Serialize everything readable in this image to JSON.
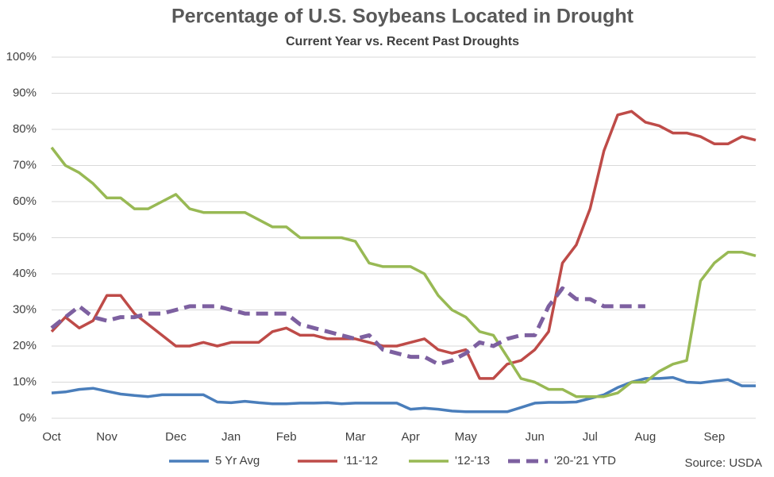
{
  "chart_data": {
    "type": "line",
    "title": "Percentage of U.S. Soybeans Located in Drought",
    "subtitle": "Current Year vs. Recent Past Droughts",
    "source": "Source: USDA",
    "categories": [
      "Oct",
      null,
      null,
      null,
      "Nov",
      null,
      null,
      null,
      null,
      "Dec",
      null,
      null,
      null,
      "Jan",
      null,
      null,
      null,
      "Feb",
      null,
      null,
      null,
      null,
      "Mar",
      null,
      null,
      null,
      "Apr",
      null,
      null,
      null,
      "May",
      null,
      null,
      null,
      null,
      "Jun",
      null,
      null,
      null,
      "Jul",
      null,
      null,
      null,
      "Aug",
      null,
      null,
      null,
      null,
      "Sep",
      null,
      null,
      null
    ],
    "series": [
      {
        "name": "5 Yr Avg",
        "color": "#4a7ebb",
        "dashed": false,
        "values": [
          7,
          7.3,
          8,
          8.3,
          7.5,
          6.7,
          6.3,
          6,
          6.5,
          6.5,
          6.5,
          6.5,
          4.5,
          4.3,
          4.7,
          4.3,
          4,
          4,
          4.2,
          4.2,
          4.3,
          4,
          4.2,
          4.2,
          4.2,
          4.2,
          2.5,
          2.8,
          2.5,
          2,
          1.8,
          1.8,
          1.8,
          1.8,
          3,
          4.2,
          4.4,
          4.4,
          4.5,
          5.5,
          6.5,
          8.5,
          10,
          11,
          11,
          11.3,
          10,
          9.8,
          10.3,
          10.7,
          9,
          9
        ]
      },
      {
        "name": "'11-'12",
        "color": "#be4b48",
        "dashed": false,
        "values": [
          24,
          28,
          25,
          27,
          34,
          34,
          29,
          26,
          23,
          20,
          20,
          21,
          20,
          21,
          21,
          21,
          24,
          25,
          23,
          23,
          22,
          22,
          22,
          21,
          20,
          20,
          21,
          22,
          19,
          18,
          19,
          11,
          11,
          15,
          16,
          19,
          24,
          43,
          48,
          58,
          74,
          84,
          85,
          82,
          81,
          79,
          79,
          78,
          76,
          76,
          78,
          77
        ]
      },
      {
        "name": "'12-'13",
        "color": "#98b954",
        "dashed": false,
        "values": [
          75,
          70,
          68,
          65,
          61,
          61,
          58,
          58,
          60,
          62,
          58,
          57,
          57,
          57,
          57,
          55,
          53,
          53,
          50,
          50,
          50,
          50,
          49,
          43,
          42,
          42,
          42,
          40,
          34,
          30,
          28,
          24,
          23,
          17,
          11,
          10,
          8,
          8,
          6,
          6,
          6,
          7,
          10,
          10,
          13,
          15,
          16,
          38,
          43,
          46,
          46,
          45
        ]
      },
      {
        "name": "'20-'21 YTD",
        "color": "#7d60a0",
        "dashed": true,
        "values": [
          25,
          28,
          31,
          28,
          27,
          28,
          28,
          29,
          29,
          30,
          31,
          31,
          31,
          30,
          29,
          29,
          29,
          29,
          26,
          25,
          24,
          23,
          22,
          23,
          19,
          18,
          17,
          17,
          15,
          16,
          18,
          21,
          20,
          22,
          23,
          23,
          31,
          36,
          33,
          33,
          31,
          31,
          31,
          31,
          null,
          null,
          null,
          null,
          null,
          null,
          null,
          null
        ]
      }
    ],
    "ylim": [
      0,
      100
    ],
    "yticks": [
      {
        "value": 0,
        "label": "0%"
      },
      {
        "value": 10,
        "label": "10%"
      },
      {
        "value": 20,
        "label": "20%"
      },
      {
        "value": 30,
        "label": "30%"
      },
      {
        "value": 40,
        "label": "40%"
      },
      {
        "value": 50,
        "label": "50%"
      },
      {
        "value": 60,
        "label": "60%"
      },
      {
        "value": 70,
        "label": "70%"
      },
      {
        "value": 80,
        "label": "80%"
      },
      {
        "value": 90,
        "label": "90%"
      },
      {
        "value": 100,
        "label": "100%"
      }
    ],
    "grid": true,
    "legend": "bottom"
  }
}
